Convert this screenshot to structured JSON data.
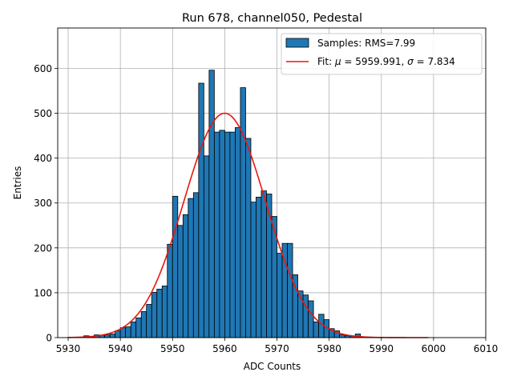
{
  "chart_data": {
    "type": "bar",
    "title": "Run 678, channel050, Pedestal",
    "xlabel": "ADC Counts",
    "ylabel": "Entries",
    "xlim": [
      5928,
      6010
    ],
    "ylim": [
      0,
      690
    ],
    "grid": true,
    "legend_position": "top-right",
    "x_ticks": [
      5930,
      5940,
      5950,
      5960,
      5970,
      5980,
      5990,
      6000,
      6010
    ],
    "y_ticks": [
      0,
      100,
      200,
      300,
      400,
      500,
      600
    ],
    "histogram": {
      "bin_width": 1,
      "bin_starts": [
        5930,
        5931,
        5932,
        5933,
        5934,
        5935,
        5936,
        5937,
        5938,
        5939,
        5940,
        5941,
        5942,
        5943,
        5944,
        5945,
        5946,
        5947,
        5948,
        5949,
        5950,
        5951,
        5952,
        5953,
        5954,
        5955,
        5956,
        5957,
        5958,
        5959,
        5960,
        5961,
        5962,
        5963,
        5964,
        5965,
        5966,
        5967,
        5968,
        5969,
        5970,
        5971,
        5972,
        5973,
        5974,
        5975,
        5976,
        5977,
        5978,
        5979,
        5980,
        5981,
        5982,
        5983,
        5984,
        5985,
        5986,
        5987,
        5988,
        5989,
        5990
      ],
      "values": [
        1,
        1,
        1,
        4,
        2,
        6,
        5,
        6,
        8,
        15,
        22,
        24,
        35,
        44,
        58,
        74,
        101,
        108,
        115,
        208,
        315,
        250,
        274,
        310,
        323,
        567,
        405,
        596,
        458,
        462,
        458,
        458,
        468,
        557,
        444,
        302,
        313,
        327,
        320,
        270,
        188,
        210,
        210,
        140,
        104,
        95,
        82,
        35,
        52,
        40,
        20,
        15,
        6,
        4,
        3,
        8,
        1,
        1,
        0,
        0,
        0
      ]
    },
    "fit": {
      "name": "Fit: μ = 5959.991, σ = 7.834",
      "mu": 5959.991,
      "sigma": 7.834,
      "amplitude": 500,
      "x_range": [
        5930,
        5999
      ]
    },
    "series": [
      {
        "name": "Samples: RMS=7.99",
        "color": "#1f77b4",
        "kind": "histogram"
      },
      {
        "name": "Fit: μ = 5959.991, σ = 7.834",
        "color": "#e8170f",
        "kind": "line"
      }
    ],
    "legend": {
      "samples_label": "Samples: RMS=7.99",
      "fit_prefix": "Fit: ",
      "fit_mu_sym": "μ",
      "fit_mu_text": " = 5959.991, ",
      "fit_sigma_sym": "σ",
      "fit_sigma_text": " = 7.834"
    }
  }
}
